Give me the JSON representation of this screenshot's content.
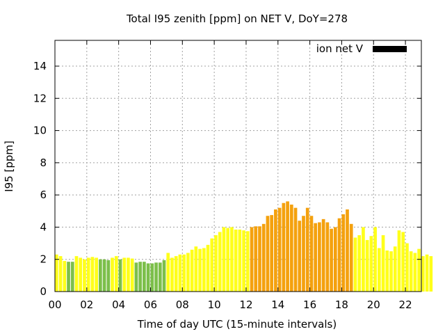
{
  "chart_data": {
    "type": "bar",
    "title": "Total I95 zenith [ppm] on NET V, DoY=278",
    "xlabel": "Time of day UTC (15-minute intervals)",
    "ylabel": "I95 [ppm]",
    "xlim": [
      0,
      23
    ],
    "ylim": [
      0,
      15.6
    ],
    "x_ticks": [
      0,
      2,
      4,
      6,
      8,
      10,
      12,
      14,
      16,
      18,
      20,
      22
    ],
    "x_tick_labels": [
      "00",
      "02",
      "04",
      "06",
      "08",
      "10",
      "12",
      "14",
      "16",
      "18",
      "20",
      "22"
    ],
    "y_ticks": [
      0,
      2,
      4,
      6,
      8,
      10,
      12,
      14
    ],
    "y_tick_labels": [
      "0",
      "2",
      "4",
      "6",
      "8",
      "10",
      "12",
      "14"
    ],
    "grid": true,
    "legend": {
      "label": "ion net V",
      "position": "top-right",
      "color": "#000000"
    },
    "bar_interval_hours": 0.25,
    "colors": {
      "green": "#7cbf4a",
      "yellow": "#ffff1a",
      "orange": "#f4a10e"
    },
    "values": [
      2.3,
      2.2,
      1.9,
      1.85,
      1.85,
      2.2,
      2.1,
      2.0,
      2.1,
      2.15,
      2.1,
      2.0,
      2.0,
      1.95,
      2.1,
      2.2,
      2.0,
      2.1,
      2.1,
      2.05,
      1.8,
      1.85,
      1.85,
      1.75,
      1.75,
      1.8,
      1.8,
      1.95,
      2.4,
      2.1,
      2.2,
      2.3,
      2.3,
      2.4,
      2.6,
      2.8,
      2.65,
      2.7,
      2.9,
      3.3,
      3.5,
      3.7,
      4.0,
      3.95,
      4.0,
      3.85,
      3.85,
      3.8,
      3.75,
      4.0,
      4.05,
      4.05,
      4.2,
      4.7,
      4.75,
      5.1,
      5.2,
      5.5,
      5.6,
      5.4,
      5.2,
      4.4,
      4.7,
      5.2,
      4.7,
      4.25,
      4.3,
      4.5,
      4.3,
      3.9,
      4.0,
      4.55,
      4.8,
      5.1,
      4.2,
      3.35,
      3.5,
      4.0,
      3.2,
      3.45,
      4.0,
      2.7,
      3.5,
      2.55,
      2.5,
      2.8,
      3.8,
      3.7,
      3.0,
      2.5,
      2.4,
      2.65,
      2.2,
      2.3,
      2.2
    ],
    "bar_colors": [
      "yellow",
      "yellow",
      "yellow",
      "green",
      "green",
      "yellow",
      "yellow",
      "yellow",
      "yellow",
      "yellow",
      "yellow",
      "green",
      "green",
      "green",
      "yellow",
      "yellow",
      "green",
      "yellow",
      "yellow",
      "yellow",
      "green",
      "green",
      "green",
      "green",
      "green",
      "green",
      "green",
      "green",
      "yellow",
      "yellow",
      "yellow",
      "yellow",
      "yellow",
      "yellow",
      "yellow",
      "yellow",
      "yellow",
      "yellow",
      "yellow",
      "yellow",
      "yellow",
      "yellow",
      "yellow",
      "yellow",
      "yellow",
      "yellow",
      "yellow",
      "yellow",
      "yellow",
      "orange",
      "orange",
      "orange",
      "orange",
      "orange",
      "orange",
      "orange",
      "orange",
      "orange",
      "orange",
      "orange",
      "orange",
      "orange",
      "orange",
      "orange",
      "orange",
      "orange",
      "orange",
      "orange",
      "orange",
      "orange",
      "orange",
      "orange",
      "orange",
      "orange",
      "orange",
      "yellow",
      "yellow",
      "yellow",
      "yellow",
      "yellow",
      "yellow",
      "yellow",
      "yellow",
      "yellow",
      "yellow",
      "yellow",
      "yellow",
      "yellow",
      "yellow",
      "yellow",
      "yellow",
      "yellow",
      "yellow",
      "yellow",
      "yellow"
    ]
  }
}
